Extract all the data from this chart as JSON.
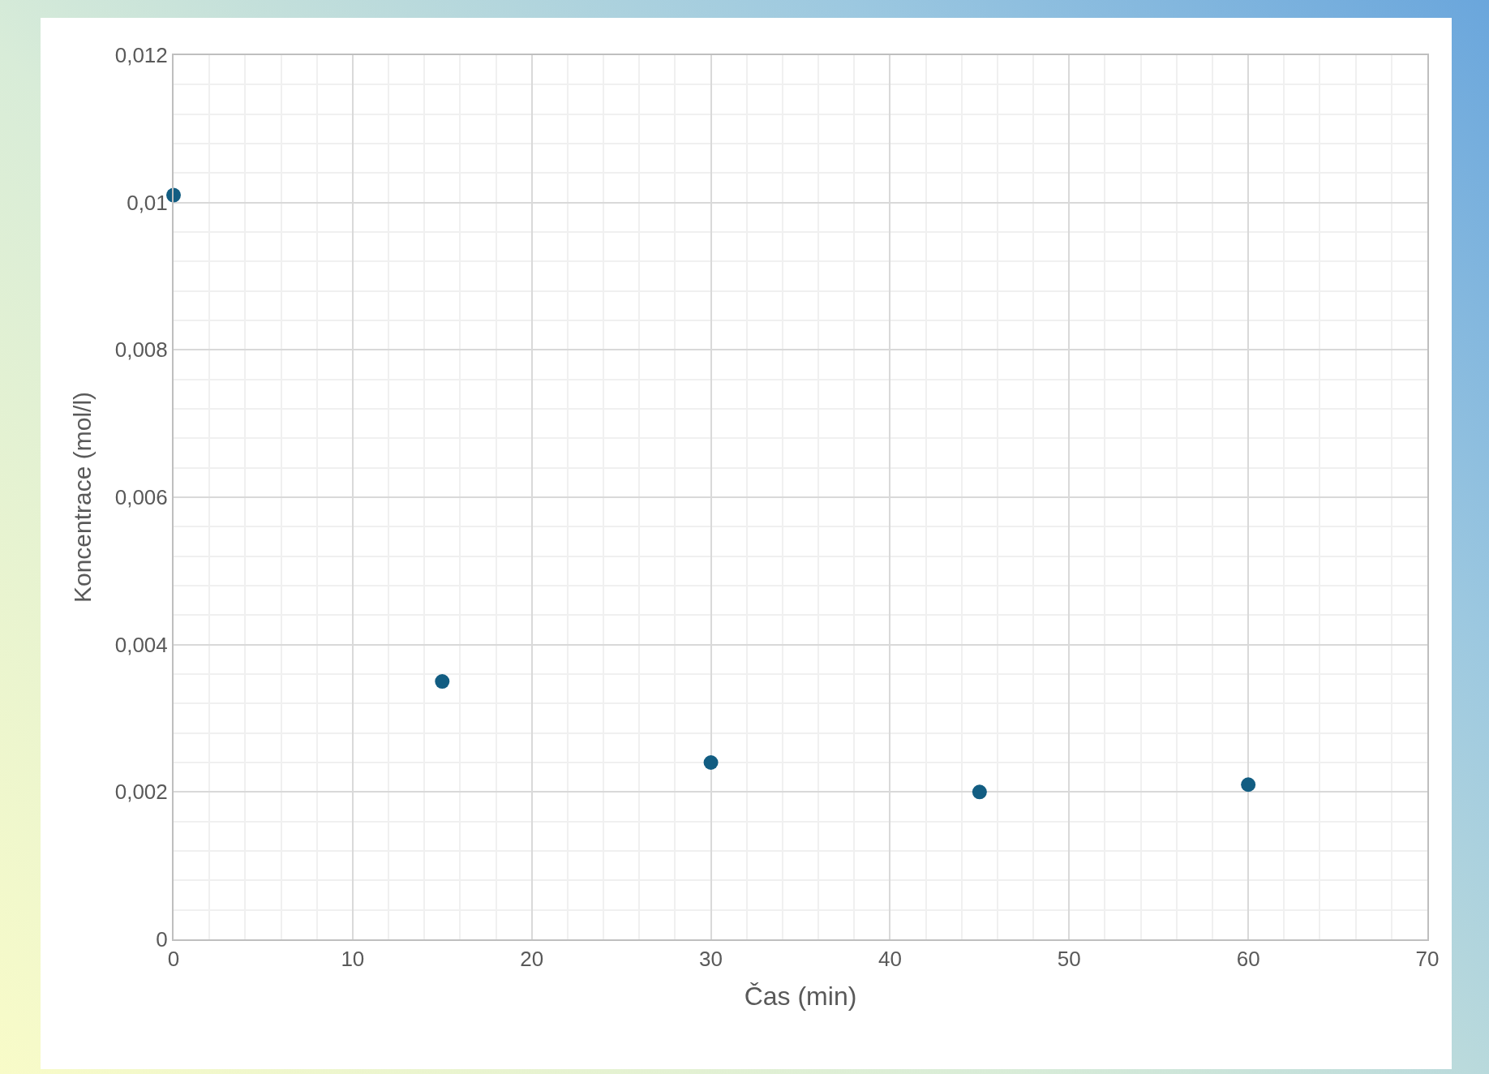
{
  "chart_data": {
    "type": "scatter",
    "xlabel": "Čas (min)",
    "ylabel": "Koncentrace (mol/l)",
    "x": [
      0,
      15,
      30,
      45,
      60
    ],
    "series": [
      {
        "color": "#125d82",
        "values": [
          0.0101,
          0.0035,
          0.0024,
          0.002,
          0.0021
        ]
      }
    ],
    "xlim": [
      0,
      70
    ],
    "xticks": [
      0,
      10,
      20,
      30,
      40,
      50,
      60,
      70
    ],
    "ylim": [
      0,
      0.012
    ],
    "yticks": [
      0,
      {
        "value": 0.002,
        "label": "0,002"
      },
      {
        "value": 0.004,
        "label": "0,004"
      },
      {
        "value": 0.006,
        "label": "0,006"
      },
      {
        "value": 0.008,
        "label": "0,008"
      },
      {
        "value": 0.01,
        "label": "0,01"
      },
      {
        "value": 0.012,
        "label": "0,012"
      }
    ],
    "grid": true,
    "marker": "circle",
    "legend": false
  }
}
